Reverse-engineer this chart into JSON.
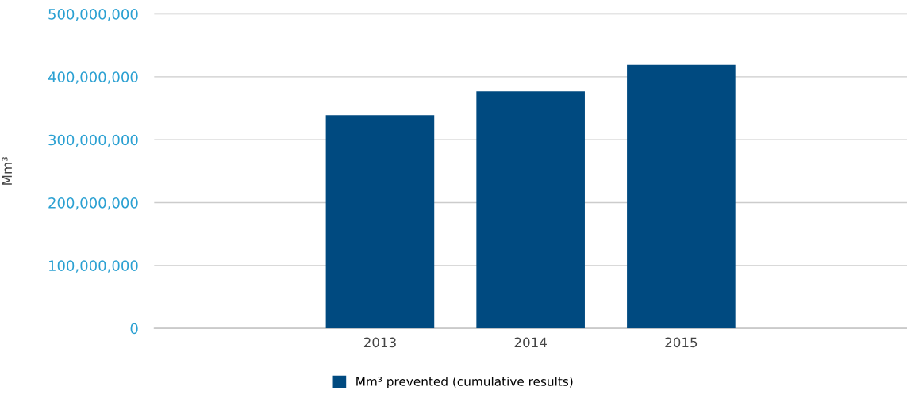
{
  "chart_data": {
    "type": "bar",
    "ylabel": "Mm³",
    "categories": [
      null,
      "2013",
      "2014",
      "2015",
      null
    ],
    "series": [
      {
        "name": "Mm³ prevented (cumulative results)",
        "color": "#004a80",
        "values": [
          null,
          339000000,
          377000000,
          419000000,
          null
        ]
      }
    ],
    "ylim": [
      0,
      500000000
    ],
    "yticks": [
      {
        "value": 0,
        "label": "0"
      },
      {
        "value": 100000000,
        "label": "100,000,000"
      },
      {
        "value": 200000000,
        "label": "200,000,000"
      },
      {
        "value": 300000000,
        "label": "300,000,000"
      },
      {
        "value": 400000000,
        "label": "400,000,000"
      },
      {
        "value": 500000000,
        "label": "500,000,000"
      }
    ],
    "grid": "y",
    "legend": "bottom"
  }
}
